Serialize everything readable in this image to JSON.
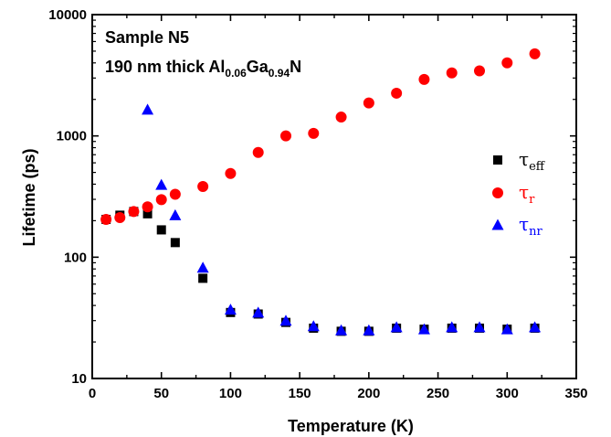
{
  "chart_data": {
    "type": "scatter",
    "xlabel": "Temperature (K)",
    "ylabel": "Lifetime (ps)",
    "xlim": [
      0,
      350
    ],
    "ylim": [
      10,
      10000
    ],
    "yscale": "log",
    "x_ticks": [
      "0",
      "50",
      "100",
      "150",
      "200",
      "250",
      "300",
      "350"
    ],
    "y_ticks": [
      "10",
      "100",
      "1000",
      "10000"
    ],
    "grid": false,
    "legend_position": "right",
    "annotations": [
      {
        "text": "Sample N5"
      },
      {
        "prefix": "190 nm thick Al",
        "sub1": "0.06",
        "mid": "Ga",
        "sub2": "0.94",
        "suffix": "N"
      }
    ],
    "series": [
      {
        "name": "τeff",
        "label_base": "τ",
        "label_sub": "eff",
        "marker": "square",
        "color": "#000000",
        "points": [
          [
            10,
            205
          ],
          [
            20,
            222
          ],
          [
            30,
            238
          ],
          [
            40,
            228
          ],
          [
            50,
            168
          ],
          [
            60,
            132
          ],
          [
            80,
            67
          ],
          [
            100,
            35
          ],
          [
            120,
            34
          ],
          [
            140,
            29
          ],
          [
            160,
            26
          ],
          [
            180,
            24.5
          ],
          [
            200,
            24.5
          ],
          [
            220,
            26
          ],
          [
            240,
            25.5
          ],
          [
            260,
            26
          ],
          [
            280,
            26
          ],
          [
            300,
            25.5
          ],
          [
            320,
            26
          ]
        ]
      },
      {
        "name": "τr",
        "label_base": "τ",
        "label_sub": "r",
        "marker": "circle",
        "color": "#ff0000",
        "points": [
          [
            10,
            205
          ],
          [
            20,
            212
          ],
          [
            30,
            238
          ],
          [
            40,
            260
          ],
          [
            50,
            298
          ],
          [
            60,
            330
          ],
          [
            80,
            383
          ],
          [
            100,
            490
          ],
          [
            120,
            730
          ],
          [
            140,
            1000
          ],
          [
            160,
            1050
          ],
          [
            180,
            1430
          ],
          [
            200,
            1870
          ],
          [
            220,
            2250
          ],
          [
            240,
            2920
          ],
          [
            260,
            3310
          ],
          [
            280,
            3440
          ],
          [
            300,
            4000
          ],
          [
            320,
            4750
          ]
        ]
      },
      {
        "name": "τnr",
        "label_base": "τ",
        "label_sub": "nr",
        "marker": "triangle",
        "color": "#0000ff",
        "points": [
          [
            40,
            1650
          ],
          [
            50,
            395
          ],
          [
            60,
            222
          ],
          [
            80,
            82
          ],
          [
            100,
            37
          ],
          [
            120,
            35
          ],
          [
            140,
            30
          ],
          [
            160,
            27
          ],
          [
            180,
            25
          ],
          [
            200,
            25
          ],
          [
            220,
            26.5
          ],
          [
            240,
            25.5
          ],
          [
            260,
            26.5
          ],
          [
            280,
            26.5
          ],
          [
            300,
            25.5
          ],
          [
            320,
            26.5
          ]
        ]
      }
    ]
  }
}
